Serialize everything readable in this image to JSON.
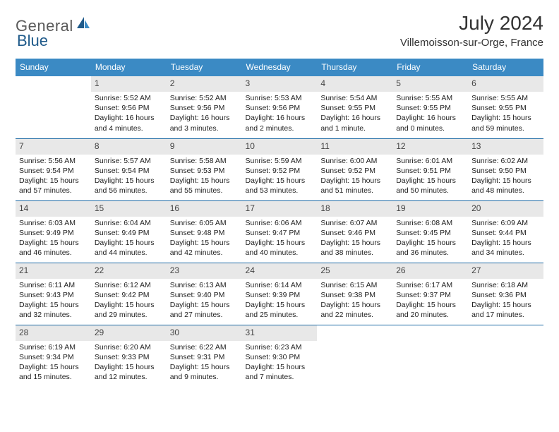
{
  "logo": {
    "word1": "General",
    "word2": "Blue"
  },
  "title": "July 2024",
  "location": "Villemoisson-sur-Orge, France",
  "weekdays": [
    "Sunday",
    "Monday",
    "Tuesday",
    "Wednesday",
    "Thursday",
    "Friday",
    "Saturday"
  ],
  "colors": {
    "header_bg": "#3b8ac4",
    "header_text": "#ffffff",
    "cell_gray": "#e8e8e8",
    "border": "#1d6aa5",
    "brand_dark": "#1f5a8a"
  },
  "weeks": [
    [
      {
        "num": "",
        "lines": []
      },
      {
        "num": "1",
        "lines": [
          "Sunrise: 5:52 AM",
          "Sunset: 9:56 PM",
          "Daylight: 16 hours and 4 minutes."
        ]
      },
      {
        "num": "2",
        "lines": [
          "Sunrise: 5:52 AM",
          "Sunset: 9:56 PM",
          "Daylight: 16 hours and 3 minutes."
        ]
      },
      {
        "num": "3",
        "lines": [
          "Sunrise: 5:53 AM",
          "Sunset: 9:56 PM",
          "Daylight: 16 hours and 2 minutes."
        ]
      },
      {
        "num": "4",
        "lines": [
          "Sunrise: 5:54 AM",
          "Sunset: 9:55 PM",
          "Daylight: 16 hours and 1 minute."
        ]
      },
      {
        "num": "5",
        "lines": [
          "Sunrise: 5:55 AM",
          "Sunset: 9:55 PM",
          "Daylight: 16 hours and 0 minutes."
        ]
      },
      {
        "num": "6",
        "lines": [
          "Sunrise: 5:55 AM",
          "Sunset: 9:55 PM",
          "Daylight: 15 hours and 59 minutes."
        ]
      }
    ],
    [
      {
        "num": "7",
        "lines": [
          "Sunrise: 5:56 AM",
          "Sunset: 9:54 PM",
          "Daylight: 15 hours and 57 minutes."
        ]
      },
      {
        "num": "8",
        "lines": [
          "Sunrise: 5:57 AM",
          "Sunset: 9:54 PM",
          "Daylight: 15 hours and 56 minutes."
        ]
      },
      {
        "num": "9",
        "lines": [
          "Sunrise: 5:58 AM",
          "Sunset: 9:53 PM",
          "Daylight: 15 hours and 55 minutes."
        ]
      },
      {
        "num": "10",
        "lines": [
          "Sunrise: 5:59 AM",
          "Sunset: 9:52 PM",
          "Daylight: 15 hours and 53 minutes."
        ]
      },
      {
        "num": "11",
        "lines": [
          "Sunrise: 6:00 AM",
          "Sunset: 9:52 PM",
          "Daylight: 15 hours and 51 minutes."
        ]
      },
      {
        "num": "12",
        "lines": [
          "Sunrise: 6:01 AM",
          "Sunset: 9:51 PM",
          "Daylight: 15 hours and 50 minutes."
        ]
      },
      {
        "num": "13",
        "lines": [
          "Sunrise: 6:02 AM",
          "Sunset: 9:50 PM",
          "Daylight: 15 hours and 48 minutes."
        ]
      }
    ],
    [
      {
        "num": "14",
        "lines": [
          "Sunrise: 6:03 AM",
          "Sunset: 9:49 PM",
          "Daylight: 15 hours and 46 minutes."
        ]
      },
      {
        "num": "15",
        "lines": [
          "Sunrise: 6:04 AM",
          "Sunset: 9:49 PM",
          "Daylight: 15 hours and 44 minutes."
        ]
      },
      {
        "num": "16",
        "lines": [
          "Sunrise: 6:05 AM",
          "Sunset: 9:48 PM",
          "Daylight: 15 hours and 42 minutes."
        ]
      },
      {
        "num": "17",
        "lines": [
          "Sunrise: 6:06 AM",
          "Sunset: 9:47 PM",
          "Daylight: 15 hours and 40 minutes."
        ]
      },
      {
        "num": "18",
        "lines": [
          "Sunrise: 6:07 AM",
          "Sunset: 9:46 PM",
          "Daylight: 15 hours and 38 minutes."
        ]
      },
      {
        "num": "19",
        "lines": [
          "Sunrise: 6:08 AM",
          "Sunset: 9:45 PM",
          "Daylight: 15 hours and 36 minutes."
        ]
      },
      {
        "num": "20",
        "lines": [
          "Sunrise: 6:09 AM",
          "Sunset: 9:44 PM",
          "Daylight: 15 hours and 34 minutes."
        ]
      }
    ],
    [
      {
        "num": "21",
        "lines": [
          "Sunrise: 6:11 AM",
          "Sunset: 9:43 PM",
          "Daylight: 15 hours and 32 minutes."
        ]
      },
      {
        "num": "22",
        "lines": [
          "Sunrise: 6:12 AM",
          "Sunset: 9:42 PM",
          "Daylight: 15 hours and 29 minutes."
        ]
      },
      {
        "num": "23",
        "lines": [
          "Sunrise: 6:13 AM",
          "Sunset: 9:40 PM",
          "Daylight: 15 hours and 27 minutes."
        ]
      },
      {
        "num": "24",
        "lines": [
          "Sunrise: 6:14 AM",
          "Sunset: 9:39 PM",
          "Daylight: 15 hours and 25 minutes."
        ]
      },
      {
        "num": "25",
        "lines": [
          "Sunrise: 6:15 AM",
          "Sunset: 9:38 PM",
          "Daylight: 15 hours and 22 minutes."
        ]
      },
      {
        "num": "26",
        "lines": [
          "Sunrise: 6:17 AM",
          "Sunset: 9:37 PM",
          "Daylight: 15 hours and 20 minutes."
        ]
      },
      {
        "num": "27",
        "lines": [
          "Sunrise: 6:18 AM",
          "Sunset: 9:36 PM",
          "Daylight: 15 hours and 17 minutes."
        ]
      }
    ],
    [
      {
        "num": "28",
        "lines": [
          "Sunrise: 6:19 AM",
          "Sunset: 9:34 PM",
          "Daylight: 15 hours and 15 minutes."
        ]
      },
      {
        "num": "29",
        "lines": [
          "Sunrise: 6:20 AM",
          "Sunset: 9:33 PM",
          "Daylight: 15 hours and 12 minutes."
        ]
      },
      {
        "num": "30",
        "lines": [
          "Sunrise: 6:22 AM",
          "Sunset: 9:31 PM",
          "Daylight: 15 hours and 9 minutes."
        ]
      },
      {
        "num": "31",
        "lines": [
          "Sunrise: 6:23 AM",
          "Sunset: 9:30 PM",
          "Daylight: 15 hours and 7 minutes."
        ]
      },
      {
        "num": "",
        "lines": []
      },
      {
        "num": "",
        "lines": []
      },
      {
        "num": "",
        "lines": []
      }
    ]
  ]
}
